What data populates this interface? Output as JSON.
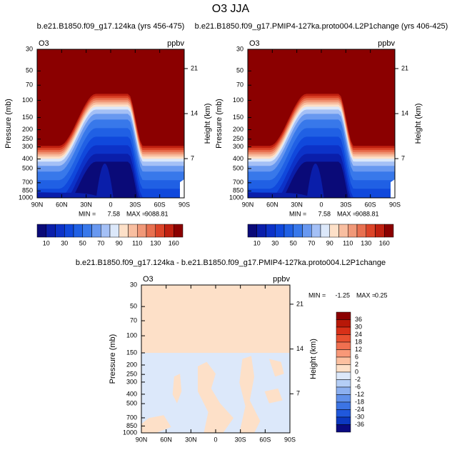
{
  "title": "O3 JJA",
  "chart_data": [
    {
      "type": "contour",
      "title": "b.e21.B1850.f09_g17.124ka (yrs 456-475)",
      "left_label": "O3",
      "right_label": "ppbv",
      "ylabel": "Pressure (mb)",
      "y2label": "Height (km)",
      "xlim": [
        90,
        -90
      ],
      "xticks": [
        {
          "value": 90,
          "label": "90N"
        },
        {
          "value": 60,
          "label": "60N"
        },
        {
          "value": 30,
          "label": "30N"
        },
        0,
        {
          "value": -30,
          "label": "30S"
        },
        {
          "value": -60,
          "label": "60S"
        },
        {
          "value": -90,
          "label": "90S"
        }
      ],
      "ylim": [
        1000,
        30
      ],
      "log_y": true,
      "yticks": [
        30,
        50,
        70,
        100,
        150,
        200,
        250,
        300,
        400,
        500,
        700,
        850,
        1000
      ],
      "y2lim": [
        0.9,
        24
      ],
      "y2ticks": [
        7,
        14,
        21
      ],
      "stats": {
        "min_label": "MIN =",
        "min": 7.58,
        "max_label": "MAX =",
        "max": 9088.81
      },
      "colorbar": {
        "orientation": "horizontal",
        "colors": [
          "#0a0a78",
          "#0a1eaa",
          "#0c32c8",
          "#1048dc",
          "#2060e4",
          "#3878ea",
          "#6898f0",
          "#a4c0f6",
          "#dce8fa",
          "#fde0c8",
          "#f8bea0",
          "#f09878",
          "#e87050",
          "#dc4428",
          "#c02010",
          "#8b0000"
        ],
        "labels": [
          10,
          30,
          50,
          70,
          90,
          110,
          130,
          160
        ]
      }
    },
    {
      "type": "contour",
      "title": "b.e21.B1850.f09_g17.PMIP4-127ka.proto004.L2P1change (yrs 406-425)",
      "left_label": "O3",
      "right_label": "ppbv",
      "ylabel": "Pressure (mb)",
      "y2label": "Height (km)",
      "xlim": [
        90,
        -90
      ],
      "xticks": [
        {
          "value": 90,
          "label": "90N"
        },
        {
          "value": 60,
          "label": "60N"
        },
        {
          "value": 30,
          "label": "30N"
        },
        0,
        {
          "value": -30,
          "label": "30S"
        },
        {
          "value": -60,
          "label": "60S"
        },
        {
          "value": -90,
          "label": "90S"
        }
      ],
      "ylim": [
        1000,
        30
      ],
      "log_y": true,
      "yticks": [
        30,
        50,
        70,
        100,
        150,
        200,
        250,
        300,
        400,
        500,
        700,
        850,
        1000
      ],
      "y2lim": [
        0.9,
        24
      ],
      "y2ticks": [
        7,
        14,
        21
      ],
      "stats": {
        "min_label": "MIN =",
        "min": 7.58,
        "max_label": "MAX =",
        "max": 9088.81
      },
      "colorbar": {
        "orientation": "horizontal",
        "colors": [
          "#0a0a78",
          "#0a1eaa",
          "#0c32c8",
          "#1048dc",
          "#2060e4",
          "#3878ea",
          "#6898f0",
          "#a4c0f6",
          "#dce8fa",
          "#fde0c8",
          "#f8bea0",
          "#f09878",
          "#e87050",
          "#dc4428",
          "#c02010",
          "#8b0000"
        ],
        "labels": [
          10,
          30,
          50,
          70,
          90,
          110,
          130,
          160
        ]
      }
    },
    {
      "type": "difference",
      "title": "b.e21.B1850.f09_g17.124ka - b.e21.B1850.f09_g17.PMIP4-127ka.proto004.L2P1change",
      "left_label": "O3",
      "right_label": "ppbv",
      "ylabel": "Pressure (mb)",
      "y2label": "Height (km)",
      "xlim": [
        90,
        -90
      ],
      "xticks": [
        {
          "value": 90,
          "label": "90N"
        },
        {
          "value": 60,
          "label": "60N"
        },
        {
          "value": 30,
          "label": "30N"
        },
        0,
        {
          "value": -30,
          "label": "30S"
        },
        {
          "value": -60,
          "label": "60S"
        },
        {
          "value": -90,
          "label": "90S"
        }
      ],
      "ylim": [
        1000,
        30
      ],
      "log_y": true,
      "yticks": [
        30,
        50,
        70,
        100,
        150,
        200,
        250,
        300,
        400,
        500,
        700,
        850,
        1000
      ],
      "y2lim": [
        0.9,
        24
      ],
      "y2ticks": [
        7,
        14,
        21
      ],
      "stats": {
        "min_label": "MIN =",
        "min": -1.25,
        "max_label": "MAX =",
        "max": 0.25
      },
      "colorbar": {
        "orientation": "vertical",
        "colors": [
          "#8b0000",
          "#b81808",
          "#d83018",
          "#e85030",
          "#f07050",
          "#f89878",
          "#fcc0a0",
          "#fde0c8",
          "#dce8fa",
          "#b4cef6",
          "#8cb0f0",
          "#6090ea",
          "#3c74e4",
          "#2058dc",
          "#0c38c0",
          "#0a0a80"
        ],
        "labels": [
          36,
          30,
          24,
          18,
          12,
          6,
          2,
          0,
          -2,
          -6,
          -12,
          -18,
          -24,
          -30,
          -36
        ]
      }
    }
  ]
}
